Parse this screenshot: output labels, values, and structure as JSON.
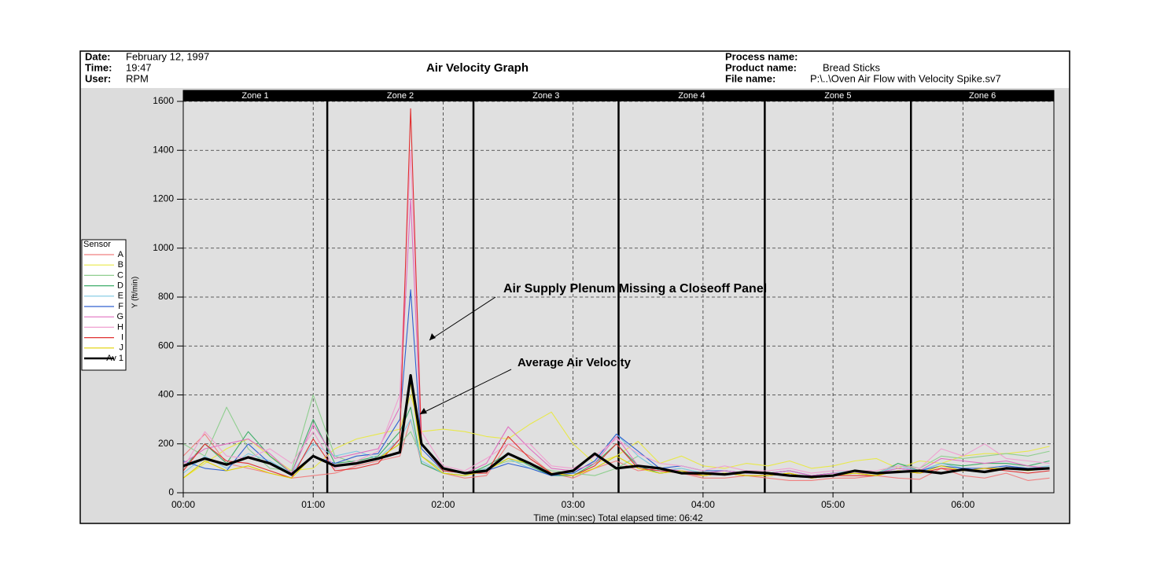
{
  "header": {
    "date_label": "Date:",
    "date": "February 12, 1997",
    "time_label": "Time:",
    "time": "19:47",
    "user_label": "User:",
    "user": "RPM",
    "process_label": "Process name:",
    "product_label": "Product name:",
    "product": "Bread Sticks",
    "file_label": "File name:",
    "file": "P:\\..\\Oven Air Flow with Velocity Spike.sv7"
  },
  "chart_data": {
    "type": "line",
    "title": "Air Velocity Graph",
    "x_label": "Time (min:sec) Total elapsed time: 06:42",
    "y_label": "Y (ft/min)",
    "legend_title": "Sensor",
    "zones": [
      "Zone 1",
      "Zone 2",
      "Zone 3",
      "Zone 4",
      "Zone 5",
      "Zone 6"
    ],
    "zone_boundaries": [
      66.5,
      134,
      201,
      268.5,
      336
    ],
    "annotations": [
      "Air Supply Plenum Missing a Closeoff Panel",
      "Average Air Velocity"
    ],
    "xlim": [
      0,
      402
    ],
    "ylim": [
      0,
      1600
    ],
    "xticks": [
      {
        "value": 0,
        "label": "00:00"
      },
      {
        "value": 60,
        "label": "01:00"
      },
      {
        "value": 120,
        "label": "02:00"
      },
      {
        "value": 180,
        "label": "03:00"
      },
      {
        "value": 240,
        "label": "04:00"
      },
      {
        "value": 300,
        "label": "05:00"
      },
      {
        "value": 360,
        "label": "06:00"
      }
    ],
    "yticks": [
      0,
      200,
      400,
      600,
      800,
      1000,
      1200,
      1400,
      1600
    ],
    "grid": true,
    "x": [
      0,
      10,
      20,
      30,
      40,
      50,
      60,
      70,
      80,
      90,
      100,
      105,
      110,
      120,
      130,
      140,
      150,
      160,
      170,
      180,
      190,
      200,
      210,
      220,
      230,
      240,
      250,
      260,
      270,
      280,
      290,
      300,
      310,
      320,
      330,
      340,
      350,
      360,
      370,
      380,
      390,
      400
    ],
    "series": [
      {
        "name": "A",
        "color": "#f08080",
        "values": [
          150,
          240,
          120,
          100,
          80,
          60,
          70,
          80,
          110,
          130,
          150,
          300,
          120,
          80,
          60,
          70,
          200,
          150,
          80,
          60,
          100,
          130,
          90,
          100,
          80,
          60,
          60,
          70,
          60,
          50,
          50,
          60,
          60,
          70,
          60,
          55,
          100,
          70,
          60,
          80,
          50,
          60
        ]
      },
      {
        "name": "B",
        "color": "#e8e84a",
        "values": [
          60,
          120,
          180,
          220,
          150,
          90,
          100,
          180,
          220,
          240,
          260,
          400,
          250,
          260,
          250,
          230,
          220,
          280,
          330,
          200,
          120,
          150,
          210,
          120,
          150,
          110,
          100,
          120,
          110,
          130,
          100,
          110,
          130,
          140,
          100,
          130,
          120,
          150,
          160,
          160,
          170,
          190
        ]
      },
      {
        "name": "C",
        "color": "#8fce8f",
        "values": [
          200,
          150,
          350,
          180,
          100,
          90,
          400,
          150,
          120,
          140,
          200,
          250,
          150,
          90,
          80,
          100,
          130,
          120,
          90,
          80,
          70,
          100,
          150,
          90,
          100,
          80,
          90,
          80,
          80,
          90,
          70,
          80,
          90,
          80,
          120,
          100,
          150,
          140,
          150,
          160,
          150,
          170
        ]
      },
      {
        "name": "D",
        "color": "#3fae6a",
        "values": [
          100,
          200,
          120,
          250,
          150,
          80,
          300,
          120,
          130,
          150,
          250,
          350,
          120,
          80,
          70,
          110,
          160,
          110,
          70,
          70,
          120,
          200,
          110,
          80,
          90,
          70,
          80,
          70,
          70,
          80,
          60,
          70,
          80,
          70,
          120,
          90,
          120,
          110,
          120,
          120,
          110,
          130
        ]
      },
      {
        "name": "E",
        "color": "#7ec8e3",
        "values": [
          80,
          150,
          100,
          160,
          130,
          80,
          200,
          150,
          170,
          140,
          220,
          300,
          130,
          80,
          70,
          100,
          140,
          100,
          70,
          80,
          130,
          240,
          150,
          90,
          100,
          80,
          90,
          80,
          80,
          90,
          70,
          80,
          90,
          80,
          110,
          90,
          120,
          100,
          100,
          110,
          100,
          110
        ]
      },
      {
        "name": "F",
        "color": "#3060d0",
        "values": [
          130,
          100,
          90,
          200,
          120,
          70,
          150,
          120,
          150,
          160,
          300,
          830,
          180,
          90,
          80,
          90,
          120,
          100,
          70,
          80,
          130,
          240,
          170,
          100,
          110,
          90,
          90,
          80,
          80,
          90,
          70,
          80,
          80,
          80,
          100,
          90,
          110,
          100,
          100,
          110,
          100,
          100
        ]
      },
      {
        "name": "G",
        "color": "#e070c0",
        "values": [
          120,
          180,
          200,
          220,
          160,
          80,
          280,
          140,
          160,
          180,
          350,
          1200,
          200,
          100,
          80,
          120,
          270,
          180,
          100,
          90,
          120,
          230,
          110,
          100,
          90,
          80,
          90,
          80,
          80,
          90,
          70,
          80,
          80,
          80,
          100,
          90,
          140,
          130,
          120,
          130,
          110,
          100
        ]
      },
      {
        "name": "H",
        "color": "#f0a0d0",
        "values": [
          100,
          250,
          150,
          140,
          180,
          120,
          250,
          100,
          130,
          170,
          400,
          1400,
          250,
          110,
          90,
          140,
          200,
          200,
          110,
          100,
          150,
          220,
          160,
          120,
          110,
          90,
          110,
          90,
          90,
          100,
          80,
          90,
          90,
          90,
          110,
          100,
          180,
          150,
          200,
          140,
          130,
          120
        ]
      },
      {
        "name": "I",
        "color": "#e03030",
        "values": [
          90,
          200,
          130,
          120,
          90,
          60,
          220,
          90,
          100,
          120,
          220,
          1570,
          200,
          90,
          80,
          80,
          230,
          140,
          80,
          70,
          110,
          200,
          100,
          90,
          80,
          70,
          80,
          70,
          70,
          80,
          60,
          70,
          70,
          70,
          90,
          80,
          100,
          90,
          100,
          90,
          80,
          90
        ]
      },
      {
        "name": "J",
        "color": "#e0d000",
        "values": [
          60,
          130,
          90,
          110,
          80,
          60,
          150,
          110,
          120,
          140,
          200,
          450,
          150,
          80,
          70,
          90,
          140,
          120,
          80,
          70,
          100,
          150,
          100,
          80,
          90,
          70,
          80,
          70,
          70,
          80,
          60,
          70,
          80,
          70,
          90,
          80,
          110,
          90,
          100,
          100,
          90,
          100
        ]
      },
      {
        "name": "Av 1",
        "color": "#000000",
        "values": [
          110,
          140,
          115,
          145,
          120,
          75,
          150,
          110,
          120,
          140,
          165,
          480,
          200,
          100,
          80,
          90,
          160,
          120,
          75,
          90,
          160,
          100,
          110,
          100,
          80,
          80,
          75,
          85,
          80,
          70,
          65,
          70,
          90,
          80,
          85,
          90,
          80,
          95,
          85,
          100,
          95,
          100
        ]
      }
    ]
  }
}
